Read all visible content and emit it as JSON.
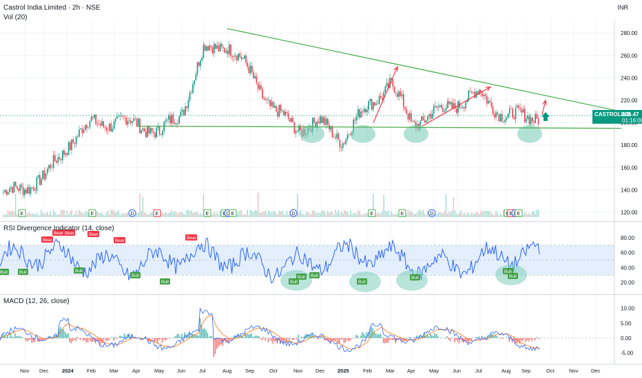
{
  "header": {
    "title": "Castrol India Limited · 2h · NSE",
    "vol_label": "Vol (20)",
    "currency": "INR"
  },
  "ticker_tag": {
    "symbol": "CASTROLIND",
    "price": "206.47",
    "countdown": "01:16:00"
  },
  "colors": {
    "up": "#089981",
    "down": "#f23645",
    "trend": "#4caf50",
    "arrow": "#f23645",
    "rsi_line": "#2962ff",
    "rsi_band": "#e3effd",
    "macd_line": "#2962ff",
    "signal_line": "#ff6d00",
    "highlight": "#7fcdb9",
    "bear_badge": "#f23645",
    "bull_badge": "#43a047"
  },
  "chart_data": [
    {
      "type": "candlestick",
      "title": "Castrol India Limited · 2h · NSE",
      "ylabel": "INR",
      "ylim": [
        120,
        285
      ],
      "yticks": [
        "280.00",
        "260.00",
        "240.00",
        "220.00",
        "200.00",
        "180.00",
        "160.00",
        "140.00",
        "120.00"
      ],
      "x_labels": [
        "Nov",
        "Dec",
        "2024",
        "Feb",
        "Mar",
        "Apr",
        "May",
        "Jun",
        "Jul",
        "Aug",
        "Sep",
        "Oct",
        "Nov",
        "Dec",
        "2025",
        "Feb",
        "Mar",
        "Apr",
        "May",
        "Jun",
        "Jul",
        "Aug",
        "Sep",
        "Oct",
        "Nov",
        "Dec"
      ],
      "closes_monthly": [
        {
          "month": "Nov 2023",
          "close": 136
        },
        {
          "month": "Dec 2023",
          "close": 150
        },
        {
          "month": "Jan 2024",
          "close": 180
        },
        {
          "month": "Feb 2024",
          "close": 200
        },
        {
          "month": "Mar 2024",
          "close": 200
        },
        {
          "month": "Apr 2024",
          "close": 200
        },
        {
          "month": "May 2024",
          "close": 190
        },
        {
          "month": "Jun 2024",
          "close": 210
        },
        {
          "month": "Jul 2024",
          "close": 265
        },
        {
          "month": "Aug 2024",
          "close": 270
        },
        {
          "month": "Sep 2024",
          "close": 245
        },
        {
          "month": "Oct 2024",
          "close": 210
        },
        {
          "month": "Nov 2024",
          "close": 195
        },
        {
          "month": "Dec 2024",
          "close": 200
        },
        {
          "month": "Jan 2025",
          "close": 185
        },
        {
          "month": "Feb 2025",
          "close": 215
        },
        {
          "month": "Mar 2025",
          "close": 235
        },
        {
          "month": "Apr 2025",
          "close": 200
        },
        {
          "month": "May 2025",
          "close": 208
        },
        {
          "month": "Jun 2025",
          "close": 218
        },
        {
          "month": "Jul 2025",
          "close": 226
        },
        {
          "month": "Aug 2025",
          "close": 205
        },
        {
          "month": "Sep 2025",
          "close": 206.47
        }
      ],
      "annotations": {
        "trendlines": [
          {
            "name": "descending resistance",
            "from": {
              "date": "Aug 2024",
              "price": 284
            },
            "to": {
              "date": "Dec 2025",
              "price": 210
            }
          },
          {
            "name": "horizontal support",
            "from": {
              "date": "Apr 2024",
              "price": 197
            },
            "to": {
              "date": "Dec 2025",
              "price": 195
            }
          }
        ],
        "arrows": [
          {
            "from": {
              "date": "Feb 2025",
              "price": 200
            },
            "to": {
              "date": "Mar 2025",
              "price": 250
            }
          },
          {
            "from": {
              "date": "Apr 2025",
              "price": 197
            },
            "to": {
              "date": "Jul 2025",
              "price": 232
            }
          },
          {
            "from": {
              "date": "Sep 2025",
              "price": 207
            },
            "to": {
              "date": "Sep 2025",
              "price": 220
            }
          }
        ],
        "highlighted_lows": [
          "Nov 2024",
          "Jan 2025",
          "Apr 2025",
          "Sep 2025"
        ],
        "event_markers": [
          "E",
          "E",
          "D",
          "E",
          "E",
          "E",
          "D",
          "E",
          "D",
          "E",
          "E",
          "D",
          "E",
          "E",
          "D",
          "E"
        ]
      }
    },
    {
      "type": "line",
      "title": "RSI Divergence Indicator (14, close)",
      "ylim": [
        10,
        92
      ],
      "yticks": [
        "80.00",
        "60.00",
        "40.00",
        "20.00"
      ],
      "band": [
        30,
        70
      ],
      "divergence_labels": {
        "bear": 6,
        "bull": 12
      },
      "bear_label": "Bear",
      "bull_label": "Bull"
    },
    {
      "type": "line",
      "title": "MACD (12, 26, close)",
      "ylim": [
        -6.5,
        12
      ],
      "yticks": [
        "10.00",
        "5.00",
        "0.00",
        "-5.00"
      ],
      "series": [
        {
          "name": "",
          "values": []
        }
      ]
    }
  ]
}
